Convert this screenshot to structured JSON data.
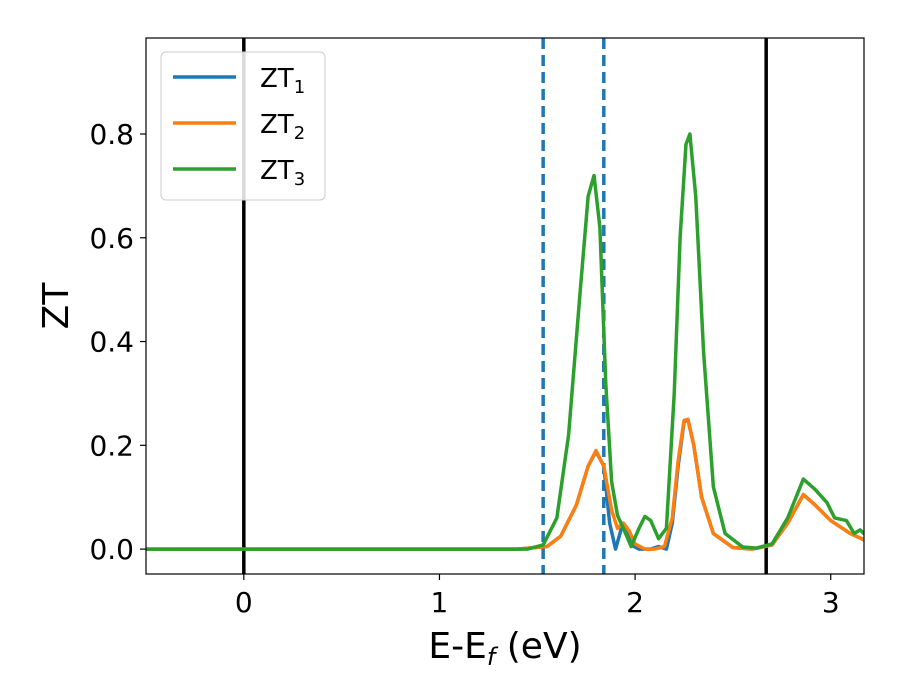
{
  "chart_data": {
    "type": "line",
    "xlabel": "E-E",
    "xlabel_sub": "f",
    "xlabel_unit": " (eV)",
    "ylabel": "ZT",
    "xlim": [
      -0.5,
      3.17
    ],
    "ylim": [
      -0.048,
      0.985
    ],
    "xticks": [
      0,
      1,
      2,
      3
    ],
    "xtick_labels": [
      "0",
      "1",
      "2",
      "3"
    ],
    "yticks": [
      0.0,
      0.2,
      0.4,
      0.6,
      0.8
    ],
    "ytick_labels": [
      "0.0",
      "0.2",
      "0.4",
      "0.6",
      "0.8"
    ],
    "grid": false,
    "legend_position": "top-left",
    "vertical_lines": [
      {
        "x": 0.0,
        "style": "solid",
        "color": "#000000"
      },
      {
        "x": 2.67,
        "style": "solid",
        "color": "#000000"
      },
      {
        "x": 1.53,
        "style": "dashed",
        "color": "#1f77b4"
      },
      {
        "x": 1.84,
        "style": "dashed",
        "color": "#1f77b4"
      }
    ],
    "series": [
      {
        "name": "ZT",
        "subscript": "1",
        "color": "#1f77b4",
        "points": [
          [
            -0.5,
            0
          ],
          [
            1.4,
            0
          ],
          [
            1.55,
            0.005
          ],
          [
            1.62,
            0.025
          ],
          [
            1.7,
            0.085
          ],
          [
            1.76,
            0.16
          ],
          [
            1.8,
            0.188
          ],
          [
            1.84,
            0.16
          ],
          [
            1.87,
            0.05
          ],
          [
            1.9,
            0.0
          ],
          [
            1.93,
            0.04
          ],
          [
            1.95,
            0.045
          ],
          [
            1.98,
            0.008
          ],
          [
            2.02,
            0.0
          ],
          [
            2.08,
            0.0
          ],
          [
            2.12,
            0.005
          ],
          [
            2.16,
            0.0
          ],
          [
            2.19,
            0.05
          ],
          [
            2.22,
            0.16
          ],
          [
            2.25,
            0.245
          ],
          [
            2.27,
            0.25
          ],
          [
            2.3,
            0.2
          ],
          [
            2.34,
            0.1
          ],
          [
            2.4,
            0.03
          ],
          [
            2.5,
            0.003
          ],
          [
            2.6,
            0.0
          ],
          [
            2.7,
            0.008
          ],
          [
            2.78,
            0.05
          ],
          [
            2.86,
            0.105
          ],
          [
            2.92,
            0.085
          ],
          [
            3.0,
            0.055
          ],
          [
            3.1,
            0.03
          ],
          [
            3.17,
            0.018
          ]
        ]
      },
      {
        "name": "ZT",
        "subscript": "2",
        "color": "#ff7f0e",
        "points": [
          [
            -0.5,
            0
          ],
          [
            1.4,
            0
          ],
          [
            1.55,
            0.005
          ],
          [
            1.62,
            0.025
          ],
          [
            1.7,
            0.085
          ],
          [
            1.76,
            0.16
          ],
          [
            1.8,
            0.19
          ],
          [
            1.84,
            0.16
          ],
          [
            1.88,
            0.075
          ],
          [
            1.91,
            0.04
          ],
          [
            1.94,
            0.05
          ],
          [
            1.97,
            0.035
          ],
          [
            2.0,
            0.01
          ],
          [
            2.05,
            0.0
          ],
          [
            2.1,
            0.0
          ],
          [
            2.15,
            0.005
          ],
          [
            2.19,
            0.06
          ],
          [
            2.22,
            0.17
          ],
          [
            2.25,
            0.248
          ],
          [
            2.27,
            0.25
          ],
          [
            2.3,
            0.2
          ],
          [
            2.34,
            0.1
          ],
          [
            2.4,
            0.03
          ],
          [
            2.5,
            0.003
          ],
          [
            2.6,
            0.0
          ],
          [
            2.7,
            0.008
          ],
          [
            2.78,
            0.05
          ],
          [
            2.86,
            0.105
          ],
          [
            2.92,
            0.085
          ],
          [
            3.0,
            0.055
          ],
          [
            3.1,
            0.03
          ],
          [
            3.17,
            0.018
          ]
        ]
      },
      {
        "name": "ZT",
        "subscript": "3",
        "color": "#2ca02c",
        "points": [
          [
            -0.5,
            0
          ],
          [
            1.45,
            0
          ],
          [
            1.53,
            0.008
          ],
          [
            1.6,
            0.06
          ],
          [
            1.66,
            0.22
          ],
          [
            1.72,
            0.5
          ],
          [
            1.76,
            0.68
          ],
          [
            1.79,
            0.72
          ],
          [
            1.82,
            0.62
          ],
          [
            1.85,
            0.32
          ],
          [
            1.88,
            0.13
          ],
          [
            1.91,
            0.065
          ],
          [
            1.94,
            0.04
          ],
          [
            1.98,
            0.005
          ],
          [
            2.02,
            0.04
          ],
          [
            2.05,
            0.063
          ],
          [
            2.08,
            0.055
          ],
          [
            2.12,
            0.02
          ],
          [
            2.16,
            0.04
          ],
          [
            2.2,
            0.3
          ],
          [
            2.23,
            0.6
          ],
          [
            2.26,
            0.78
          ],
          [
            2.28,
            0.8
          ],
          [
            2.31,
            0.68
          ],
          [
            2.35,
            0.38
          ],
          [
            2.4,
            0.12
          ],
          [
            2.46,
            0.03
          ],
          [
            2.55,
            0.004
          ],
          [
            2.62,
            0.002
          ],
          [
            2.7,
            0.01
          ],
          [
            2.78,
            0.06
          ],
          [
            2.86,
            0.135
          ],
          [
            2.92,
            0.115
          ],
          [
            2.98,
            0.09
          ],
          [
            3.02,
            0.06
          ],
          [
            3.08,
            0.055
          ],
          [
            3.12,
            0.03
          ],
          [
            3.15,
            0.037
          ],
          [
            3.17,
            0.03
          ]
        ]
      }
    ]
  }
}
